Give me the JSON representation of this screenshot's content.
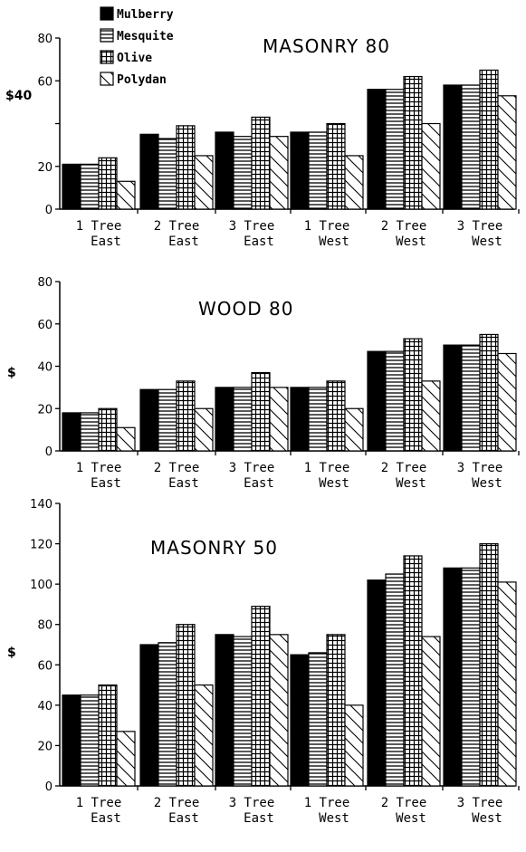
{
  "legend": [
    {
      "label": "Mulberry",
      "pattern": "solid"
    },
    {
      "label": "Mesquite",
      "pattern": "horizontal"
    },
    {
      "label": "Olive",
      "pattern": "grid"
    },
    {
      "label": "Polydan",
      "pattern": "diagonal"
    }
  ],
  "colors": {
    "ink": "#000000",
    "background": "#ffffff"
  },
  "chart_data": [
    {
      "type": "bar",
      "title": "MASONRY 80",
      "ylabel": "$",
      "ylabel_with_tick": "$40",
      "ylim": [
        0,
        80
      ],
      "yticks": [
        "0",
        "20",
        "40",
        "60",
        "80"
      ],
      "categories": [
        [
          "1 Tree",
          "East"
        ],
        [
          "2 Tree",
          "East"
        ],
        [
          "3 Tree",
          "East"
        ],
        [
          "1 Tree",
          "West"
        ],
        [
          "2 Tree",
          "West"
        ],
        [
          "3 Tree",
          "West"
        ]
      ],
      "series": [
        {
          "name": "Mulberry",
          "values": [
            21,
            35,
            36,
            36,
            56,
            58
          ]
        },
        {
          "name": "Mesquite",
          "values": [
            21,
            33,
            34,
            36,
            56,
            58
          ]
        },
        {
          "name": "Olive",
          "values": [
            24,
            39,
            43,
            40,
            62,
            65
          ]
        },
        {
          "name": "Polydan",
          "values": [
            13,
            25,
            34,
            25,
            40,
            53
          ]
        }
      ]
    },
    {
      "type": "bar",
      "title": "WOOD 80",
      "ylabel": "$",
      "ylim": [
        0,
        80
      ],
      "yticks": [
        "0",
        "20",
        "40",
        "60",
        "80"
      ],
      "categories": [
        [
          "1 Tree",
          "East"
        ],
        [
          "2 Tree",
          "East"
        ],
        [
          "3 Tree",
          "East"
        ],
        [
          "1 Tree",
          "West"
        ],
        [
          "2 Tree",
          "West"
        ],
        [
          "3 Tree",
          "West"
        ]
      ],
      "series": [
        {
          "name": "Mulberry",
          "values": [
            18,
            29,
            30,
            30,
            47,
            50
          ]
        },
        {
          "name": "Mesquite",
          "values": [
            18,
            29,
            30,
            30,
            47,
            50
          ]
        },
        {
          "name": "Olive",
          "values": [
            20,
            33,
            37,
            33,
            53,
            55
          ]
        },
        {
          "name": "Polydan",
          "values": [
            11,
            20,
            30,
            20,
            33,
            46
          ]
        }
      ]
    },
    {
      "type": "bar",
      "title": "MASONRY 50",
      "ylabel": "$",
      "ylim": [
        0,
        140
      ],
      "yticks": [
        "0",
        "20",
        "40",
        "60",
        "80",
        "100",
        "120",
        "140"
      ],
      "categories": [
        [
          "1 Tree",
          "East"
        ],
        [
          "2 Tree",
          "East"
        ],
        [
          "3 Tree",
          "East"
        ],
        [
          "1 Tree",
          "West"
        ],
        [
          "2 Tree",
          "West"
        ],
        [
          "3 Tree",
          "West"
        ]
      ],
      "series": [
        {
          "name": "Mulberry",
          "values": [
            45,
            70,
            75,
            65,
            102,
            108
          ]
        },
        {
          "name": "Mesquite",
          "values": [
            45,
            71,
            74,
            66,
            105,
            108
          ]
        },
        {
          "name": "Olive",
          "values": [
            50,
            80,
            89,
            75,
            114,
            120
          ]
        },
        {
          "name": "Polydan",
          "values": [
            27,
            50,
            75,
            40,
            74,
            101
          ]
        }
      ]
    }
  ]
}
